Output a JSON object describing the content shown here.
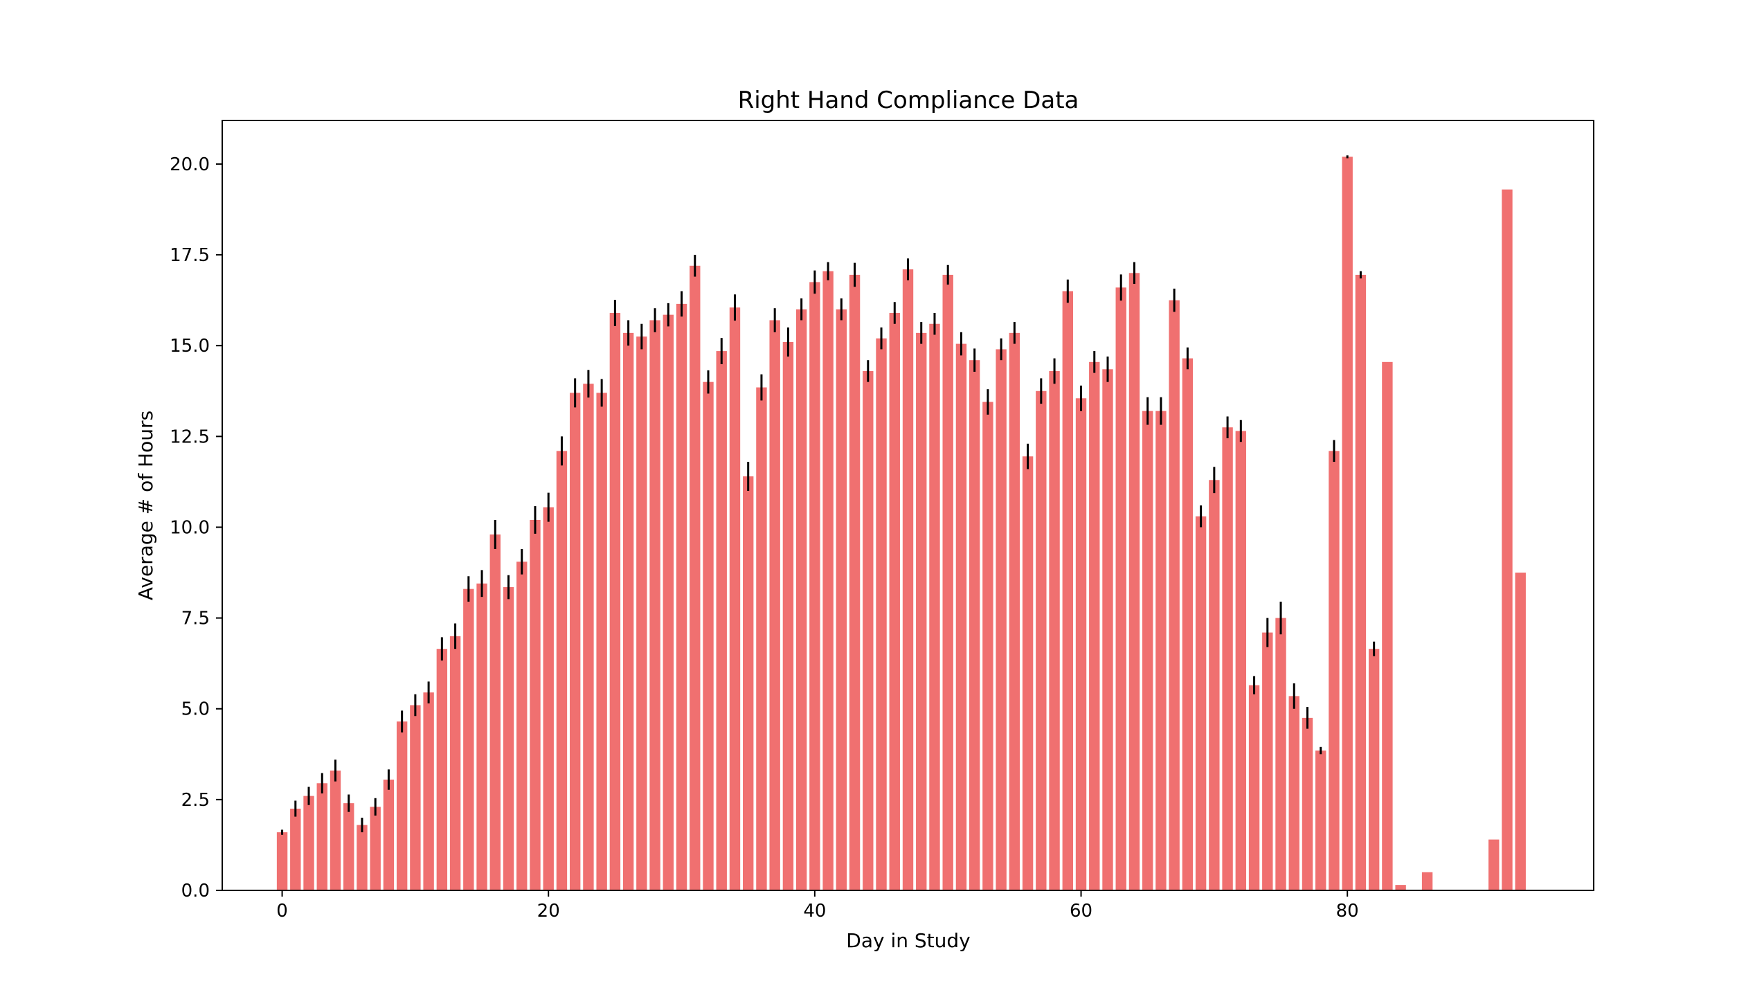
{
  "chart_data": {
    "type": "bar",
    "title": "Right Hand Compliance Data",
    "xlabel": "Day in Study",
    "ylabel": "Average # of Hours",
    "xlim": [
      -4.5,
      98.5
    ],
    "ylim": [
      0,
      21.2
    ],
    "xticks": [
      0,
      20,
      40,
      60,
      80
    ],
    "yticks": [
      0.0,
      2.5,
      5.0,
      7.5,
      10.0,
      12.5,
      15.0,
      17.5,
      20.0
    ],
    "yticks_labels": [
      "0.0",
      "2.5",
      "5.0",
      "7.5",
      "10.0",
      "12.5",
      "15.0",
      "17.5",
      "20.0"
    ],
    "xticks_labels": [
      "0",
      "20",
      "40",
      "60",
      "80"
    ],
    "bar_color": "#f07070",
    "errorbar_color": "#000000",
    "grid": false,
    "x": [
      0,
      1,
      2,
      3,
      4,
      5,
      6,
      7,
      8,
      9,
      10,
      11,
      12,
      13,
      14,
      15,
      16,
      17,
      18,
      19,
      20,
      21,
      22,
      23,
      24,
      25,
      26,
      27,
      28,
      29,
      30,
      31,
      32,
      33,
      34,
      35,
      36,
      37,
      38,
      39,
      40,
      41,
      42,
      43,
      44,
      45,
      46,
      47,
      48,
      49,
      50,
      51,
      52,
      53,
      54,
      55,
      56,
      57,
      58,
      59,
      60,
      61,
      62,
      63,
      64,
      65,
      66,
      67,
      68,
      69,
      70,
      71,
      72,
      73,
      74,
      75,
      76,
      77,
      78,
      79,
      80,
      81,
      82,
      83,
      84,
      86,
      91,
      92,
      93
    ],
    "values": [
      1.6,
      2.25,
      2.6,
      2.95,
      3.3,
      2.4,
      1.8,
      2.3,
      3.05,
      4.65,
      5.1,
      5.45,
      6.65,
      7.0,
      8.3,
      8.45,
      9.8,
      8.35,
      9.05,
      10.2,
      10.55,
      12.1,
      13.7,
      13.95,
      13.7,
      15.9,
      15.35,
      15.25,
      15.7,
      15.85,
      16.15,
      17.2,
      14.0,
      14.85,
      16.05,
      11.4,
      13.85,
      15.7,
      15.1,
      16.0,
      16.75,
      17.05,
      16.0,
      16.95,
      14.3,
      15.2,
      15.9,
      17.1,
      15.35,
      15.6,
      16.95,
      15.05,
      14.6,
      13.45,
      14.9,
      15.35,
      11.95,
      13.75,
      14.3,
      16.5,
      13.55,
      14.55,
      14.35,
      16.6,
      17.0,
      13.2,
      13.2,
      16.25,
      14.65,
      10.3,
      11.3,
      12.75,
      12.65,
      5.65,
      7.1,
      7.5,
      5.35,
      4.75,
      3.85,
      12.1,
      20.2,
      16.95,
      6.65,
      14.55,
      0.15,
      0.5,
      1.4,
      19.3,
      8.75
    ],
    "errors": [
      0.07,
      0.22,
      0.25,
      0.28,
      0.3,
      0.24,
      0.2,
      0.24,
      0.28,
      0.3,
      0.3,
      0.3,
      0.32,
      0.35,
      0.35,
      0.37,
      0.4,
      0.33,
      0.35,
      0.38,
      0.4,
      0.4,
      0.4,
      0.38,
      0.38,
      0.36,
      0.35,
      0.35,
      0.33,
      0.32,
      0.35,
      0.3,
      0.32,
      0.36,
      0.36,
      0.4,
      0.36,
      0.33,
      0.4,
      0.3,
      0.32,
      0.25,
      0.3,
      0.33,
      0.3,
      0.3,
      0.3,
      0.3,
      0.3,
      0.3,
      0.27,
      0.32,
      0.32,
      0.35,
      0.3,
      0.3,
      0.35,
      0.35,
      0.35,
      0.32,
      0.35,
      0.3,
      0.35,
      0.36,
      0.3,
      0.38,
      0.38,
      0.32,
      0.3,
      0.3,
      0.36,
      0.3,
      0.3,
      0.25,
      0.4,
      0.45,
      0.35,
      0.3,
      0.1,
      0.3,
      0.04,
      0.1,
      0.2,
      0,
      0,
      0,
      0,
      0,
      0
    ]
  }
}
